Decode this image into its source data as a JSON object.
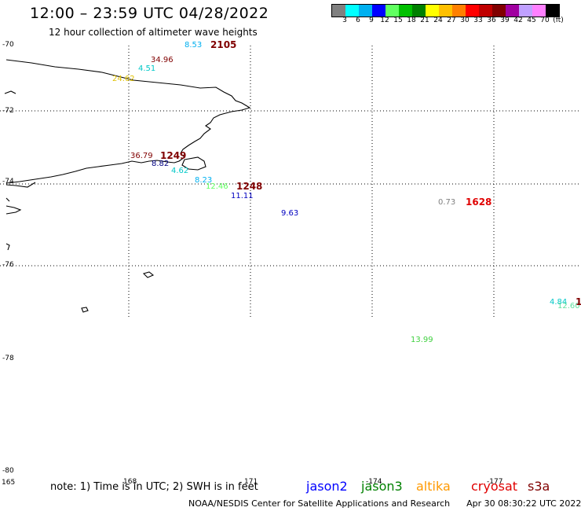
{
  "header": {
    "title": "12:00 – 23:59 UTC 04/28/2022",
    "subtitle": "12 hour collection of altimeter wave heights"
  },
  "colorbar": {
    "colors": [
      "#808080",
      "#00ffff",
      "#00b0f0",
      "#0000ff",
      "#60ff60",
      "#00c000",
      "#008000",
      "#ffff00",
      "#ffc000",
      "#ff8000",
      "#ff0000",
      "#c00000",
      "#800000",
      "#a000a0",
      "#c0a0ff",
      "#ff80ff",
      "#000000"
    ],
    "labels": [
      "3",
      "6",
      "9",
      "12",
      "15",
      "18",
      "21",
      "24",
      "27",
      "30",
      "33",
      "36",
      "39",
      "42",
      "45",
      "70",
      "(ft)"
    ]
  },
  "latitudes": [
    "-70",
    "-72",
    "-74",
    "-76",
    "-78",
    "-80"
  ],
  "longitudes": [
    "165",
    "168",
    "171",
    "-174",
    "-177"
  ],
  "observations": [
    {
      "text": "8.53",
      "color": "#00b0f0"
    },
    {
      "text": "2105",
      "color": "#800000"
    },
    {
      "text": "34.96",
      "color": "#800000"
    },
    {
      "text": "4.51",
      "color": "#00c8c8"
    },
    {
      "text": "24.62",
      "color": "#e0c000"
    },
    {
      "text": "36.79",
      "color": "#800000"
    },
    {
      "text": "1249",
      "color": "#800000"
    },
    {
      "text": "8.82",
      "color": "#000080"
    },
    {
      "text": "4.62",
      "color": "#00c8c8"
    },
    {
      "text": "8.23",
      "color": "#00b0f0"
    },
    {
      "text": "12.46",
      "color": "#60ff60"
    },
    {
      "text": "1248",
      "color": "#800000"
    },
    {
      "text": "11.11",
      "color": "#0000c0"
    },
    {
      "text": "9.63",
      "color": "#0000c0"
    },
    {
      "text": "0.73",
      "color": "#808080"
    },
    {
      "text": "1628",
      "color": "#e00000"
    },
    {
      "text": "4.84",
      "color": "#00c8c8"
    },
    {
      "text": "12.60",
      "color": "#60e0a0"
    },
    {
      "text": "1",
      "color": "#800000"
    },
    {
      "text": "13.99",
      "color": "#40d040"
    }
  ],
  "note": "note: 1) Time is in UTC; 2) SWH is in feet",
  "satellites": [
    {
      "name": "jason2",
      "color": "#0000ff"
    },
    {
      "name": "jason3",
      "color": "#008000"
    },
    {
      "name": "altika",
      "color": "#ff9900"
    },
    {
      "name": "cryosat",
      "color": "#e00000"
    },
    {
      "name": "s3a",
      "color": "#800000"
    }
  ],
  "footer": {
    "agency": "NOAA/NESDIS Center for Satellite Applications and Research",
    "timestamp": "Apr 30 08:30:22 UTC 2022"
  }
}
